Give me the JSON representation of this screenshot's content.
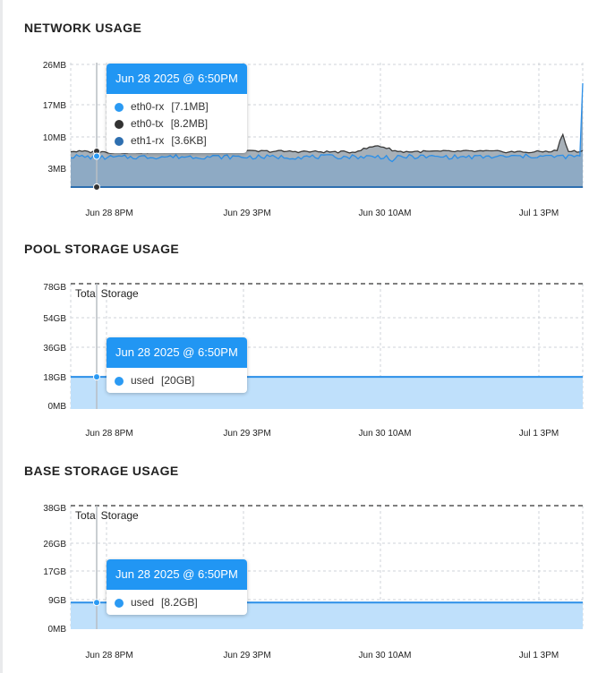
{
  "network": {
    "title": "NETWORK USAGE",
    "tooltip": {
      "header": "Jun 28 2025 @ 6:50PM",
      "rows": [
        {
          "name": "eth0-rx",
          "value": "[7.1MB]",
          "color": "#2b9af3"
        },
        {
          "name": "eth0-tx",
          "value": "[8.2MB]",
          "color": "#333333"
        },
        {
          "name": "eth1-rx",
          "value": "[3.6KB]",
          "color": "#2e6fb0"
        }
      ]
    }
  },
  "pool": {
    "title": "POOL STORAGE USAGE",
    "total_label": "Total Storage",
    "tooltip": {
      "header": "Jun 28 2025 @ 6:50PM",
      "rows": [
        {
          "name": "used",
          "value": "[20GB]",
          "color": "#2b9af3"
        }
      ]
    }
  },
  "base": {
    "title": "BASE STORAGE USAGE",
    "total_label": "Total Storage",
    "tooltip": {
      "header": "Jun 28 2025 @ 6:50PM",
      "rows": [
        {
          "name": "used",
          "value": "[8.2GB]",
          "color": "#2b9af3"
        }
      ]
    }
  },
  "chart_data": [
    {
      "type": "area",
      "title": "NETWORK USAGE",
      "unit": "MB",
      "y_ticks": [
        "26MB",
        "17MB",
        "10MB",
        "3MB"
      ],
      "y_tick_values": [
        26,
        17,
        10,
        3
      ],
      "ylim": [
        0,
        28
      ],
      "x_ticks": [
        "Jun 28 8PM",
        "Jun 29 3PM",
        "Jun 30 10AM",
        "Jul 1 3PM"
      ],
      "grid": true,
      "series": [
        {
          "name": "eth0-tx",
          "color": "#3a3a3a",
          "typical": 8.2,
          "x": [
            0,
            0.06,
            0.2,
            0.4,
            0.55,
            0.6,
            0.64,
            0.8,
            0.9,
            0.95,
            0.96,
            0.97,
            1.0
          ],
          "values": [
            8.2,
            8.0,
            8.1,
            8.2,
            8.0,
            9.5,
            8.1,
            8.2,
            8.0,
            8.3,
            12.5,
            8.2,
            8.2
          ]
        },
        {
          "name": "eth0-rx",
          "color": "#2b8fe8",
          "typical": 7.1,
          "x": [
            0,
            0.06,
            0.2,
            0.4,
            0.62,
            0.63,
            0.64,
            0.8,
            0.9,
            0.96,
            0.98,
            0.998,
            1.0
          ],
          "values": [
            7.1,
            6.8,
            7.0,
            6.9,
            7.0,
            5.5,
            7.0,
            6.9,
            7.1,
            7.0,
            7.0,
            7.2,
            23.0
          ]
        },
        {
          "name": "eth1-rx",
          "color": "#2e6fb0",
          "typical": 0.0036,
          "x": [
            0,
            1
          ],
          "values": [
            0.0036,
            0.0036
          ]
        }
      ]
    },
    {
      "type": "area",
      "title": "POOL STORAGE USAGE",
      "y_ticks": [
        "78GB",
        "54GB",
        "36GB",
        "18GB",
        "0MB"
      ],
      "y_tick_values": [
        78,
        54,
        36,
        18,
        0
      ],
      "ylim": [
        0,
        78
      ],
      "x_ticks": [
        "Jun 28 8PM",
        "Jun 29 3PM",
        "Jun 30 10AM",
        "Jul 1 3PM"
      ],
      "grid": true,
      "total": {
        "label": "Total Storage",
        "value": 78
      },
      "series": [
        {
          "name": "used",
          "color": "#2b9af3",
          "x": [
            0,
            1
          ],
          "values": [
            20,
            20
          ]
        }
      ]
    },
    {
      "type": "area",
      "title": "BASE STORAGE USAGE",
      "y_ticks": [
        "38GB",
        "26GB",
        "17GB",
        "9GB",
        "0MB"
      ],
      "y_tick_values": [
        38,
        26,
        17,
        9,
        0
      ],
      "ylim": [
        0,
        38
      ],
      "x_ticks": [
        "Jun 28 8PM",
        "Jun 29 3PM",
        "Jun 30 10AM",
        "Jul 1 3PM"
      ],
      "grid": true,
      "total": {
        "label": "Total Storage",
        "value": 38
      },
      "series": [
        {
          "name": "used",
          "color": "#2b9af3",
          "x": [
            0,
            1
          ],
          "values": [
            8.2,
            8.2
          ]
        }
      ]
    }
  ]
}
